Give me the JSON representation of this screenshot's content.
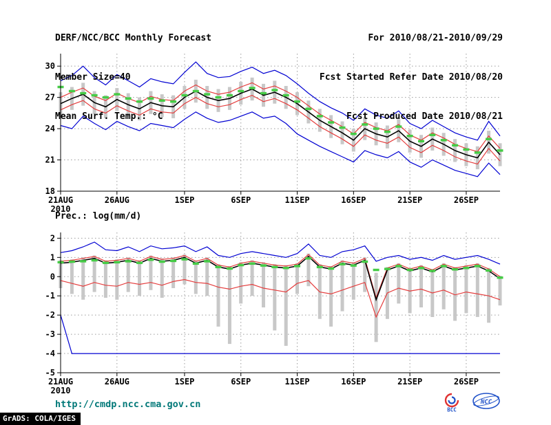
{
  "header": {
    "title": "DERF/NCC/BCC Monthly Forecast",
    "member_size": "Member Size=40",
    "var_label": "Mean Surf. Temp.: °C",
    "for_range": "For 2010/08/21-2010/09/29",
    "fcst_started": "Fcst Started Refer Date 2010/08/20",
    "fcst_produced": "Fcst Produced Date 2010/08/21"
  },
  "footer": {
    "url": "http://cmdp.ncc.cma.gov.cn",
    "grads_credit": "GrADS: COLA/IGES",
    "logo_bcc": "BCC",
    "logo_ncc": "NCC"
  },
  "colors": {
    "text": "#000000",
    "grid": "#9a9a9a",
    "axis": "#000000",
    "bar": "#c8c8c8",
    "blue": "#0000d2",
    "red": "#e43c3c",
    "mean": "#000000",
    "green": "#46cc46",
    "url": "#007878",
    "logo_blue": "#1e50c8",
    "logo_red": "#e03232"
  },
  "chart_data": [
    {
      "id": "temp",
      "type": "line",
      "title": "Mean Surf. Temp.: °C",
      "xlabel": "",
      "ylabel": "°C",
      "ylim": [
        18,
        30
      ],
      "yticks": [
        18,
        21,
        24,
        27,
        30
      ],
      "grid": true,
      "legend": "none",
      "n_points": 40,
      "x_start_date": "21AUG2010",
      "x_end_date": "29SEP2010",
      "xtick_labels": [
        "21AUG",
        "26AUG",
        "1SEP",
        "6SEP",
        "11SEP",
        "16SEP",
        "21SEP",
        "26SEP"
      ],
      "xtick_positions": [
        0,
        5,
        11,
        16,
        21,
        26,
        31,
        36
      ],
      "x_sub_label": "2010",
      "series": [
        {
          "name": "ensemble-max",
          "color": "#0000d2",
          "style": "solid",
          "values": [
            28.6,
            29.1,
            30.0,
            28.9,
            28.2,
            29.2,
            28.6,
            28.0,
            28.8,
            28.5,
            28.3,
            29.4,
            30.4,
            29.3,
            28.9,
            29.0,
            29.5,
            29.9,
            29.3,
            29.6,
            29.1,
            28.3,
            27.4,
            26.6,
            26.0,
            25.5,
            24.8,
            25.9,
            25.3,
            25.0,
            25.7,
            24.5,
            24.0,
            24.8,
            24.2,
            23.6,
            23.2,
            22.9,
            24.7,
            23.3
          ]
        },
        {
          "name": "ensemble-min",
          "color": "#0000d2",
          "style": "solid",
          "values": [
            24.3,
            24.0,
            25.2,
            24.5,
            23.9,
            24.7,
            24.2,
            23.8,
            24.5,
            24.3,
            24.1,
            24.9,
            25.6,
            25.0,
            24.6,
            24.8,
            25.2,
            25.6,
            25.0,
            25.2,
            24.5,
            23.5,
            22.9,
            22.3,
            21.8,
            21.3,
            20.8,
            21.9,
            21.5,
            21.2,
            21.8,
            20.8,
            20.3,
            21.0,
            20.5,
            20.0,
            19.7,
            19.4,
            20.7,
            19.6
          ]
        },
        {
          "name": "plus-std",
          "color": "#e43c3c",
          "style": "solid",
          "values": [
            27.0,
            27.5,
            27.9,
            27.1,
            26.7,
            27.4,
            26.9,
            26.5,
            27.1,
            26.8,
            26.7,
            27.6,
            28.2,
            27.6,
            27.3,
            27.5,
            28.0,
            28.4,
            27.8,
            28.1,
            27.6,
            27.0,
            26.2,
            25.4,
            24.8,
            24.2,
            23.5,
            24.6,
            24.1,
            23.8,
            24.4,
            23.4,
            22.9,
            23.6,
            23.1,
            22.5,
            22.1,
            21.8,
            23.3,
            22.1
          ]
        },
        {
          "name": "minus-std",
          "color": "#e43c3c",
          "style": "solid",
          "values": [
            25.8,
            26.3,
            26.7,
            25.9,
            25.5,
            26.2,
            25.7,
            25.3,
            25.9,
            25.6,
            25.5,
            26.4,
            27.0,
            26.4,
            26.1,
            26.3,
            26.8,
            27.2,
            26.6,
            26.9,
            26.4,
            25.8,
            25.0,
            24.2,
            23.6,
            23.0,
            22.3,
            23.4,
            22.9,
            22.6,
            23.2,
            22.2,
            21.7,
            22.4,
            21.9,
            21.3,
            20.9,
            20.6,
            22.1,
            20.9
          ]
        },
        {
          "name": "ensemble-mean",
          "color": "#000000",
          "style": "solid",
          "values": [
            26.4,
            26.9,
            27.3,
            26.5,
            26.1,
            26.8,
            26.3,
            25.9,
            26.5,
            26.2,
            26.1,
            27.0,
            27.6,
            27.0,
            26.7,
            26.9,
            27.4,
            27.8,
            27.2,
            27.5,
            27.0,
            26.4,
            25.6,
            24.8,
            24.2,
            23.6,
            22.9,
            24.0,
            23.5,
            23.2,
            23.8,
            22.8,
            22.3,
            23.0,
            22.5,
            21.9,
            21.5,
            21.2,
            22.7,
            21.5
          ]
        },
        {
          "name": "climate-dashed",
          "color": "#46cc46",
          "style": "dash-marker",
          "values": [
            28.0,
            27.6,
            27.4,
            27.2,
            27.0,
            27.3,
            26.9,
            26.6,
            26.9,
            26.7,
            26.6,
            27.2,
            27.6,
            27.3,
            27.0,
            27.2,
            27.6,
            27.9,
            27.4,
            27.7,
            27.2,
            26.6,
            25.9,
            25.2,
            24.6,
            24.1,
            23.5,
            24.4,
            24.0,
            23.7,
            24.2,
            23.3,
            22.8,
            23.4,
            22.9,
            22.4,
            22.0,
            21.7,
            23.0,
            21.9
          ]
        }
      ],
      "bars": {
        "name": "ensemble-spread",
        "color": "#c8c8c8",
        "low": [
          25.3,
          25.8,
          26.2,
          25.4,
          25.0,
          25.7,
          25.2,
          24.8,
          25.4,
          25.1,
          25.0,
          25.9,
          26.5,
          25.9,
          25.6,
          25.8,
          26.3,
          26.7,
          26.1,
          26.4,
          25.9,
          25.3,
          24.5,
          23.7,
          23.1,
          22.5,
          21.8,
          22.9,
          22.4,
          22.1,
          22.7,
          21.7,
          21.2,
          21.9,
          21.4,
          20.8,
          20.4,
          20.1,
          21.6,
          20.4
        ],
        "high": [
          27.5,
          28.0,
          28.4,
          27.6,
          27.2,
          27.9,
          27.4,
          27.0,
          27.6,
          27.3,
          27.2,
          28.1,
          28.7,
          28.1,
          27.8,
          28.0,
          28.5,
          28.9,
          28.3,
          28.6,
          28.1,
          27.5,
          26.7,
          25.9,
          25.3,
          24.7,
          24.0,
          25.1,
          24.6,
          24.3,
          24.9,
          23.9,
          23.4,
          24.1,
          23.6,
          23.0,
          22.6,
          22.3,
          23.8,
          22.6
        ]
      }
    },
    {
      "id": "precip",
      "type": "line",
      "title": "Prec.: log(mm/d)",
      "xlabel": "",
      "ylabel": "log(mm/d)",
      "ylim": [
        -5,
        2
      ],
      "yticks": [
        -5,
        -4,
        -3,
        -2,
        -1,
        0,
        1,
        2
      ],
      "grid": true,
      "legend": "none",
      "n_points": 40,
      "x_start_date": "21AUG2010",
      "x_end_date": "29SEP2010",
      "xtick_labels": [
        "21AUG",
        "26AUG",
        "1SEP",
        "6SEP",
        "11SEP",
        "16SEP",
        "21SEP",
        "26SEP"
      ],
      "xtick_positions": [
        0,
        5,
        11,
        16,
        21,
        26,
        31,
        36
      ],
      "x_sub_label": "2010",
      "series": [
        {
          "name": "ensemble-max",
          "color": "#0000d2",
          "style": "solid",
          "values": [
            1.25,
            1.35,
            1.55,
            1.8,
            1.4,
            1.35,
            1.55,
            1.3,
            1.6,
            1.45,
            1.5,
            1.6,
            1.3,
            1.55,
            1.1,
            1.0,
            1.2,
            1.3,
            1.2,
            1.1,
            1.0,
            1.2,
            1.7,
            1.1,
            1.0,
            1.3,
            1.4,
            1.6,
            0.8,
            1.0,
            1.1,
            0.9,
            1.0,
            0.85,
            1.1,
            0.9,
            1.0,
            1.1,
            0.9,
            0.65
          ]
        },
        {
          "name": "ensemble-min",
          "color": "#0000d2",
          "style": "solid",
          "values": [
            -2.0,
            -4.0,
            -4.0,
            -4.0,
            -4.0,
            -4.0,
            -4.0,
            -4.0,
            -4.0,
            -4.0,
            -4.0,
            -4.0,
            -4.0,
            -4.0,
            -4.0,
            -4.0,
            -4.0,
            -4.0,
            -4.0,
            -4.0,
            -4.0,
            -4.0,
            -4.0,
            -4.0,
            -4.0,
            -4.0,
            -4.0,
            -4.0,
            -4.0,
            -4.0,
            -4.0,
            -4.0,
            -4.0,
            -4.0,
            -4.0,
            -4.0,
            -4.0,
            -4.0,
            -4.0,
            -4.0
          ]
        },
        {
          "name": "plus-std",
          "color": "#e43c3c",
          "style": "solid",
          "values": [
            0.8,
            0.85,
            0.95,
            1.05,
            0.8,
            0.85,
            0.95,
            0.8,
            1.05,
            0.9,
            0.95,
            1.1,
            0.8,
            0.95,
            0.6,
            0.5,
            0.7,
            0.8,
            0.7,
            0.6,
            0.55,
            0.65,
            1.15,
            0.6,
            0.5,
            0.8,
            0.7,
            0.95,
            -1.1,
            0.45,
            0.65,
            0.4,
            0.55,
            0.35,
            0.65,
            0.45,
            0.55,
            0.65,
            0.4,
            0.0
          ]
        },
        {
          "name": "minus-std",
          "color": "#e43c3c",
          "style": "solid",
          "values": [
            -0.2,
            -0.35,
            -0.5,
            -0.3,
            -0.45,
            -0.5,
            -0.3,
            -0.4,
            -0.3,
            -0.45,
            -0.25,
            -0.15,
            -0.3,
            -0.35,
            -0.55,
            -0.65,
            -0.5,
            -0.4,
            -0.6,
            -0.7,
            -0.8,
            -0.35,
            -0.2,
            -0.8,
            -0.9,
            -0.7,
            -0.5,
            -0.3,
            -2.1,
            -0.85,
            -0.6,
            -0.75,
            -0.65,
            -0.85,
            -0.7,
            -0.95,
            -0.8,
            -0.9,
            -1.0,
            -1.2
          ]
        },
        {
          "name": "ensemble-mean",
          "color": "#000000",
          "style": "solid",
          "values": [
            0.7,
            0.75,
            0.85,
            0.95,
            0.7,
            0.75,
            0.85,
            0.7,
            0.95,
            0.8,
            0.85,
            1.0,
            0.7,
            0.85,
            0.5,
            0.4,
            0.6,
            0.7,
            0.6,
            0.5,
            0.45,
            0.55,
            1.05,
            0.5,
            0.4,
            0.7,
            0.6,
            0.85,
            -1.2,
            0.35,
            0.55,
            0.3,
            0.45,
            0.25,
            0.55,
            0.35,
            0.45,
            0.55,
            0.3,
            -0.1
          ]
        },
        {
          "name": "climate-dashed",
          "color": "#46cc46",
          "style": "dash-marker",
          "values": [
            0.75,
            0.78,
            0.8,
            0.85,
            0.72,
            0.75,
            0.8,
            0.72,
            0.88,
            0.78,
            0.82,
            0.9,
            0.68,
            0.8,
            0.5,
            0.42,
            0.6,
            0.68,
            0.58,
            0.5,
            0.45,
            0.55,
            0.95,
            0.5,
            0.42,
            0.65,
            0.58,
            0.78,
            0.35,
            0.4,
            0.55,
            0.35,
            0.45,
            0.3,
            0.55,
            0.38,
            0.45,
            0.55,
            0.32,
            -0.05
          ]
        }
      ],
      "bars": {
        "name": "ensemble-spread",
        "color": "#c8c8c8",
        "low": [
          -0.6,
          -0.9,
          -1.2,
          -0.8,
          -1.1,
          -1.2,
          -0.8,
          -1.0,
          -0.7,
          -1.1,
          -0.6,
          -0.4,
          -0.9,
          -1.0,
          -2.6,
          -3.5,
          -1.4,
          -1.0,
          -1.6,
          -2.8,
          -3.6,
          -0.9,
          -0.5,
          -2.2,
          -2.6,
          -1.8,
          -1.2,
          -0.8,
          -3.4,
          -2.2,
          -1.4,
          -1.9,
          -1.6,
          -2.1,
          -1.7,
          -2.3,
          -1.9,
          -2.1,
          -2.4,
          -1.5
        ],
        "high": [
          0.85,
          0.9,
          1.0,
          1.1,
          0.85,
          0.9,
          1.0,
          0.85,
          1.1,
          0.95,
          1.0,
          1.15,
          0.85,
          1.0,
          0.65,
          0.55,
          0.75,
          0.85,
          0.75,
          0.65,
          0.6,
          0.7,
          1.2,
          0.65,
          0.55,
          0.85,
          0.75,
          1.0,
          0.2,
          0.5,
          0.7,
          0.45,
          0.6,
          0.4,
          0.7,
          0.5,
          0.6,
          0.7,
          0.45,
          0.05
        ]
      }
    }
  ]
}
